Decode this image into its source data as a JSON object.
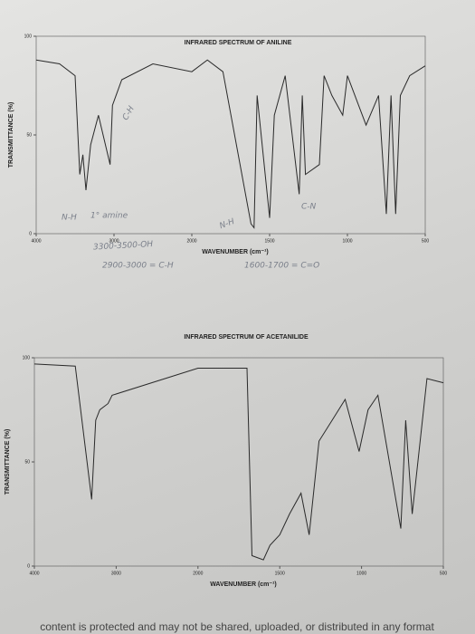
{
  "chart_data": [
    {
      "type": "line",
      "title": "INFRARED SPECTRUM OF ANILINE",
      "x_label": "WAVENUMBER (cm⁻¹)",
      "y_label": "TRANSMITTANCE (%)",
      "xlim": [
        4000,
        500
      ],
      "xticks": [
        4000,
        3000,
        2000,
        1500,
        1000,
        500
      ],
      "ylim": [
        0,
        100
      ],
      "yticks": [
        0,
        50,
        100
      ],
      "color": "#2a2a2a",
      "x": [
        4000,
        3700,
        3500,
        3440,
        3400,
        3360,
        3300,
        3200,
        3050,
        3020,
        2900,
        2500,
        2000,
        1900,
        1800,
        1620,
        1600,
        1580,
        1500,
        1470,
        1400,
        1310,
        1290,
        1270,
        1180,
        1150,
        1100,
        1030,
        1000,
        880,
        800,
        750,
        720,
        690,
        660,
        600,
        500
      ],
      "values": [
        88,
        86,
        80,
        30,
        40,
        22,
        45,
        60,
        35,
        65,
        78,
        86,
        82,
        88,
        82,
        5,
        3,
        70,
        8,
        60,
        80,
        20,
        70,
        30,
        35,
        80,
        70,
        60,
        80,
        55,
        70,
        10,
        70,
        10,
        70,
        80,
        85
      ],
      "annotations": [
        "N-H",
        "1° amine",
        "C-H",
        "N-H",
        "C-N",
        "3300-3500-OH",
        "2900-3000 = C-H",
        "1600-1700 = C=O"
      ]
    },
    {
      "type": "line",
      "title": "INFRARED SPECTRUM OF ACETANILIDE",
      "x_label": "WAVENUMBER (cm⁻¹)",
      "y_label": "TRANSMITTANCE (%)",
      "xlim": [
        4000,
        500
      ],
      "xticks": [
        4000,
        3000,
        2000,
        1500,
        1000,
        500
      ],
      "ylim": [
        0,
        100
      ],
      "yticks": [
        0,
        50,
        100
      ],
      "color": "#2a2a2a",
      "x": [
        4000,
        3500,
        3300,
        3250,
        3200,
        3100,
        3050,
        2000,
        1700,
        1670,
        1600,
        1560,
        1500,
        1440,
        1370,
        1320,
        1260,
        1180,
        1100,
        1015,
        960,
        900,
        760,
        730,
        690,
        600,
        500
      ],
      "values": [
        97,
        96,
        32,
        70,
        75,
        78,
        82,
        95,
        95,
        5,
        3,
        10,
        15,
        25,
        35,
        15,
        60,
        70,
        80,
        55,
        75,
        82,
        18,
        70,
        25,
        90,
        88
      ]
    }
  ],
  "footer": "content is protected and may not be shared, uploaded, or distributed in any format"
}
